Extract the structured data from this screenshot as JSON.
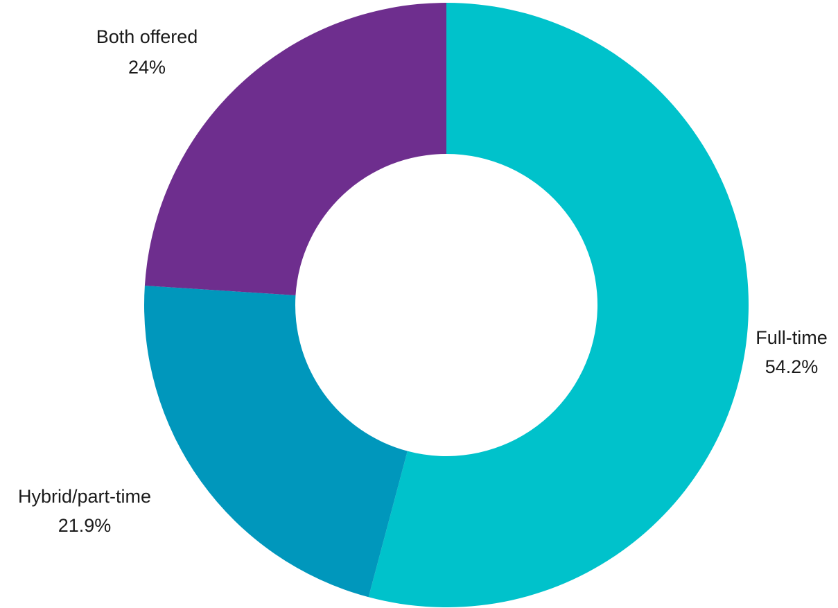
{
  "chart_data": {
    "type": "pie",
    "donut": true,
    "title": "",
    "slices": [
      {
        "label": "Full-time",
        "value": 54.2,
        "display": "54.2%",
        "color": "#00c2cb"
      },
      {
        "label": "Hybrid/part-time",
        "value": 21.9,
        "display": "21.9%",
        "color": "#0097bc"
      },
      {
        "label": "Both offered",
        "value": 24,
        "display": "24%",
        "color": "#6e2e8e"
      }
    ],
    "legend": "none",
    "labels_outside": true
  }
}
